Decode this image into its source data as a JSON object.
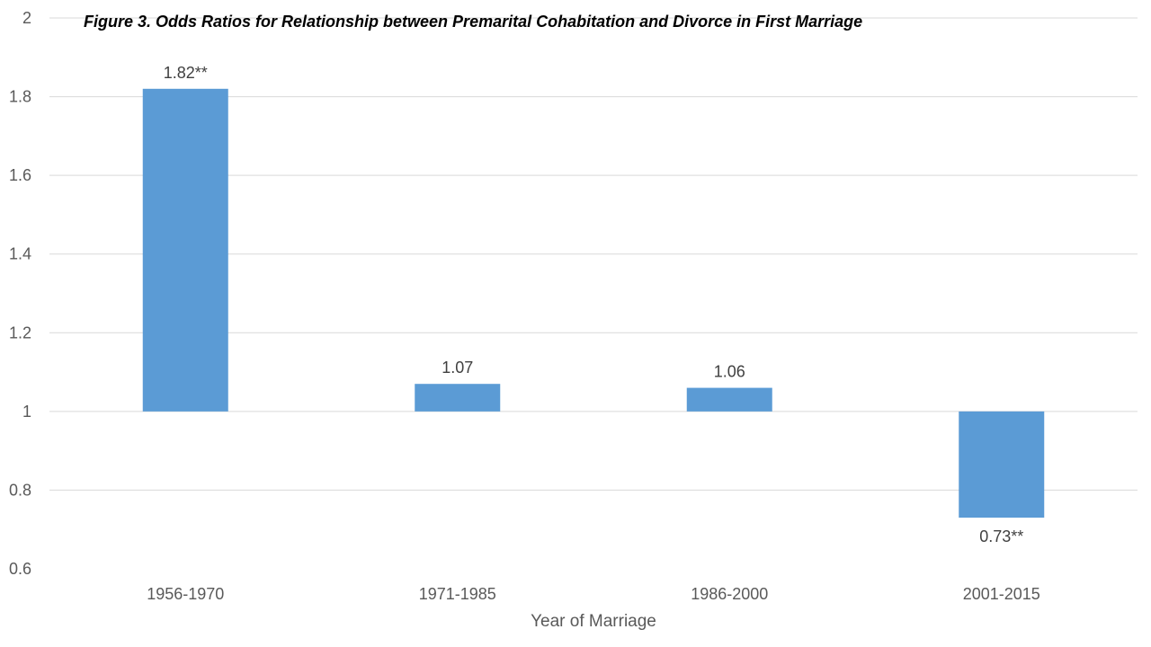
{
  "chart_data": {
    "type": "bar",
    "title": "Figure 3. Odds Ratios for Relationship between Premarital Cohabitation and Divorce in First Marriage",
    "xlabel": "Year of Marriage",
    "ylabel": "",
    "categories": [
      "1956-1970",
      "1971-1985",
      "1986-2000",
      "2001-2015"
    ],
    "values": [
      1.82,
      1.07,
      1.06,
      0.73
    ],
    "data_labels": [
      "1.82**",
      "1.07",
      "1.06",
      "0.73**"
    ],
    "baseline": 1,
    "ylim": [
      0.6,
      2
    ],
    "yticks": [
      0.6,
      0.8,
      1,
      1.2,
      1.4,
      1.6,
      1.8,
      2
    ],
    "ytick_labels": [
      "0.6",
      "0.8",
      "1",
      "1.2",
      "1.4",
      "1.6",
      "1.8",
      "2"
    ],
    "grid": true,
    "legend": "none",
    "bar_color": "#5b9bd5"
  }
}
